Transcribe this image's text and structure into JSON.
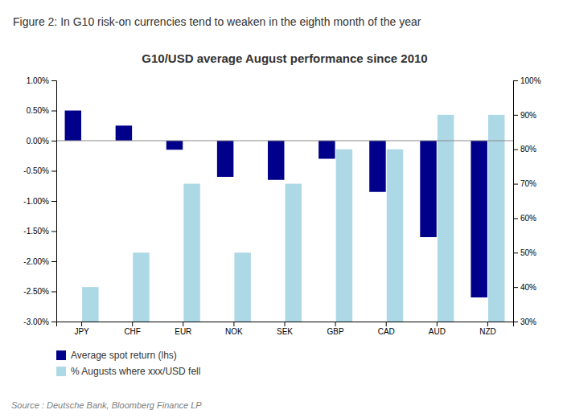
{
  "chart_data": {
    "type": "bar",
    "title": "G10/USD average August performance since 2010",
    "subtitle": "Figure 2: In G10 risk-on currencies tend to weaken in the eighth month of the year",
    "annotations": [
      "Source : Deutsche Bank, Bloomberg Finance LP"
    ],
    "categories": [
      "JPY",
      "CHF",
      "EUR",
      "NOK",
      "SEK",
      "GBP",
      "CAD",
      "AUD",
      "NZD"
    ],
    "series": [
      {
        "name": "Average spot return (lhs)",
        "color": "#00008B",
        "axis": "y",
        "values": [
          0.005,
          0.0025,
          -0.0015,
          -0.006,
          -0.0065,
          -0.003,
          -0.0085,
          -0.016,
          -0.026
        ]
      },
      {
        "name": "% Augusts where xxx/USD fell",
        "color": "#ADD8E6",
        "axis": "y2",
        "values": [
          0.4,
          0.5,
          0.7,
          0.5,
          0.7,
          0.8,
          0.8,
          0.9,
          0.9
        ]
      }
    ],
    "ylim": [
      -0.03,
      0.01
    ],
    "yticks": [
      {
        "value": -0.03,
        "label": "-3.00%"
      },
      {
        "value": -0.025,
        "label": "-2.50%"
      },
      {
        "value": -0.02,
        "label": "-2.00%"
      },
      {
        "value": -0.015,
        "label": "-1.50%"
      },
      {
        "value": -0.01,
        "label": "-1.00%"
      },
      {
        "value": -0.005,
        "label": "-0.50%"
      },
      {
        "value": 0.0,
        "label": "0.00%"
      },
      {
        "value": 0.005,
        "label": "0.50%"
      },
      {
        "value": 0.01,
        "label": "1.00%"
      }
    ],
    "y2lim": [
      0.3,
      1.0
    ],
    "y2ticks": [
      {
        "value": 0.3,
        "label": "30%"
      },
      {
        "value": 0.4,
        "label": "40%"
      },
      {
        "value": 0.5,
        "label": "50%"
      },
      {
        "value": 0.6,
        "label": "60%"
      },
      {
        "value": 0.7,
        "label": "70%"
      },
      {
        "value": 0.8,
        "label": "80%"
      },
      {
        "value": 0.9,
        "label": "90%"
      },
      {
        "value": 1.0,
        "label": "100%"
      }
    ],
    "grid": false,
    "legend": "lower left"
  }
}
